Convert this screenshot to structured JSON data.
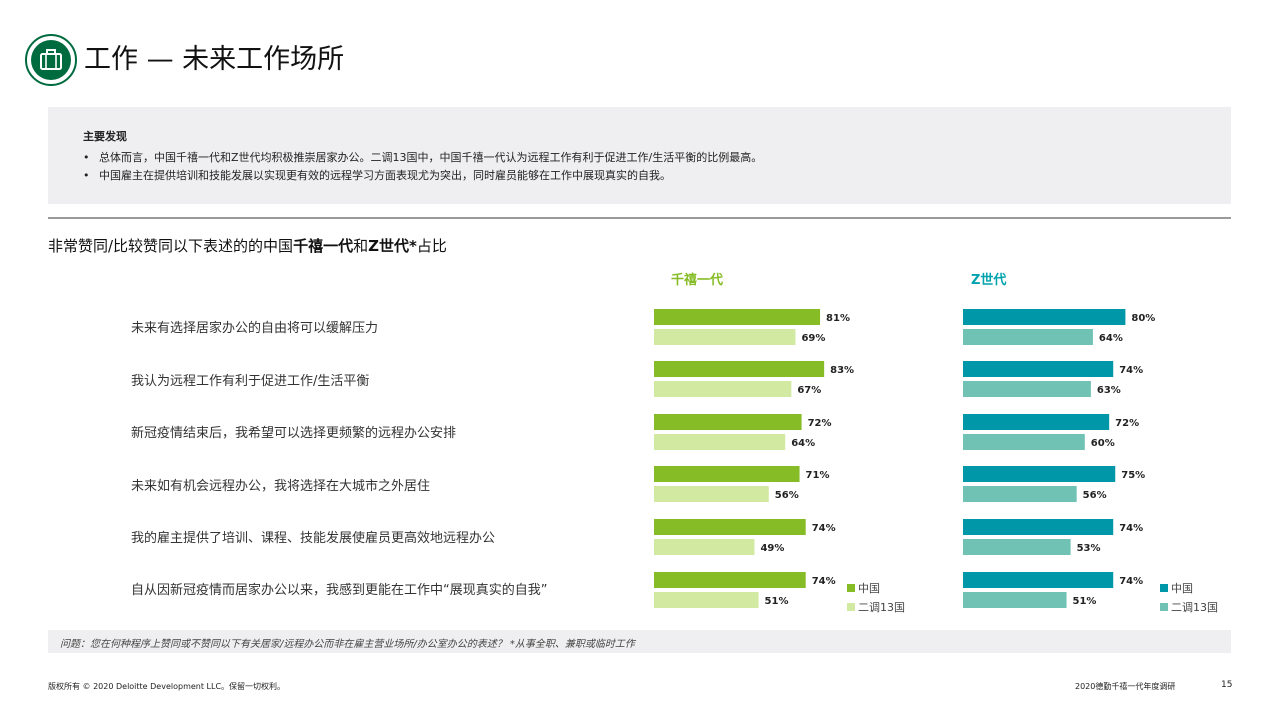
{
  "header": {
    "title": "工作 — 未来工作场所",
    "icon": "briefcase-icon",
    "icon_color": "#006b3f"
  },
  "findings": {
    "title": "主要发现",
    "items": [
      "总体而言，中国千禧一代和Z世代均积极推崇居家办公。二调13国中，中国千禧一代认为远程工作有利于促进工作/生活平衡的比例最高。",
      "中国雇主在提供培训和技能发展以实现更有效的远程学习方面表现尤为突出，同时雇员能够在工作中展现真实的自我。"
    ]
  },
  "chart_heading": {
    "prefix": "非常赞同/比较赞同以下表述的的中国",
    "bold1": "千禧一代",
    "middle": "和",
    "bold2": "Z世代*",
    "suffix": "占比"
  },
  "chart_data": {
    "type": "bar",
    "orientation": "horizontal",
    "categories": [
      "未来有选择居家办公的自由将可以缓解压力",
      "我认为远程工作有利于促进工作/生活平衡",
      "新冠疫情结束后，我希望可以选择更频繁的远程办公安排",
      "未来如有机会远程办公，我将选择在大城市之外居住",
      "我的雇主提供了培训、课程、技能发展使雇员更高效地远程办公",
      "自从因新冠疫情而居家办公以来，我感到更能在工作中“展现真实的自我”"
    ],
    "groups": [
      {
        "title": "千禧一代",
        "title_color": "#86bc25",
        "series": [
          {
            "name": "中国",
            "color": "#86bc25",
            "values": [
              81,
              83,
              72,
              71,
              74,
              74
            ]
          },
          {
            "name": "二调13国",
            "color": "#d2e9a1",
            "values": [
              69,
              67,
              64,
              56,
              49,
              51
            ]
          }
        ]
      },
      {
        "title": "Z世代",
        "title_color": "#00a3ad",
        "series": [
          {
            "name": "中国",
            "color": "#0097a9",
            "values": [
              80,
              74,
              72,
              75,
              74,
              74
            ]
          },
          {
            "name": "二调13国",
            "color": "#6fc2b4",
            "values": [
              64,
              63,
              60,
              56,
              53,
              51
            ]
          }
        ]
      }
    ],
    "value_suffix": "%",
    "grid": false,
    "legend_placement": "bottom-right"
  },
  "note": "问题：您在何种程序上赞同或不赞同以下有关居家/远程办公而非在雇主营业场所/办公室办公的表述？ *从事全职、兼职或临时工作",
  "footer": {
    "copyright": "版权所有 © 2020 Deloitte Development LLC。保留一切权利。",
    "report": "2020德勤千禧一代年度调研",
    "page": "15"
  }
}
